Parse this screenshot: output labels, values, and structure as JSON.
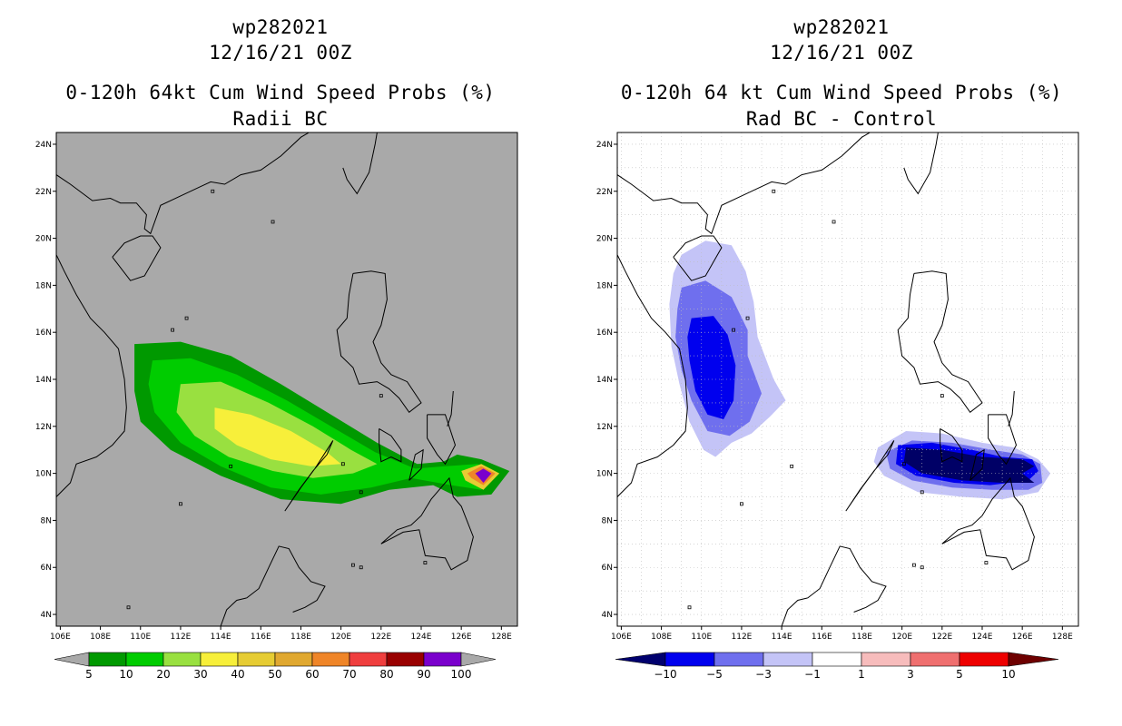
{
  "panels": [
    {
      "id": "left",
      "title_line1": "wp282021",
      "title_line2": "12/16/21 00Z",
      "title_line3": "0-120h 64kt Cum Wind Speed Probs (%)",
      "title_line4": "Radii BC",
      "background": "#a9a9a9",
      "colorbar": {
        "colors": [
          "#009900",
          "#00cc00",
          "#99e040",
          "#f7ef3a",
          "#e6cc33",
          "#e0a830",
          "#ef8528",
          "#ef3e3e",
          "#990000",
          "#7a00cc"
        ],
        "labels": [
          "5",
          "10",
          "20",
          "30",
          "40",
          "50",
          "60",
          "70",
          "80",
          "90",
          "100"
        ],
        "arrow_color": "#a9a9a9"
      }
    },
    {
      "id": "right",
      "title_line1": "wp282021",
      "title_line2": "12/16/21 00Z",
      "title_line3": "0-120h 64 kt Cum Wind Speed Probs (%)",
      "title_line4": "Rad BC - Control",
      "background": "#ffffff",
      "colorbar": {
        "colors": [
          "#0000ee",
          "#6f6fee",
          "#c4c4f7",
          "#ffffff",
          "#f7bcbc",
          "#ef6f6f",
          "#ee0000"
        ],
        "labels": [
          "-10",
          "-5",
          "-3",
          "-1",
          "1",
          "3",
          "5",
          "10"
        ],
        "arrow_left": "#00006e",
        "arrow_right": "#6e0000"
      }
    }
  ],
  "axes": {
    "lon_labels": [
      "106E",
      "108E",
      "110E",
      "112E",
      "114E",
      "116E",
      "118E",
      "120E",
      "122E",
      "124E",
      "126E",
      "128E"
    ],
    "lat_labels": [
      "4N",
      "6N",
      "8N",
      "10N",
      "12N",
      "14N",
      "16N",
      "18N",
      "20N",
      "22N",
      "24N"
    ]
  }
}
